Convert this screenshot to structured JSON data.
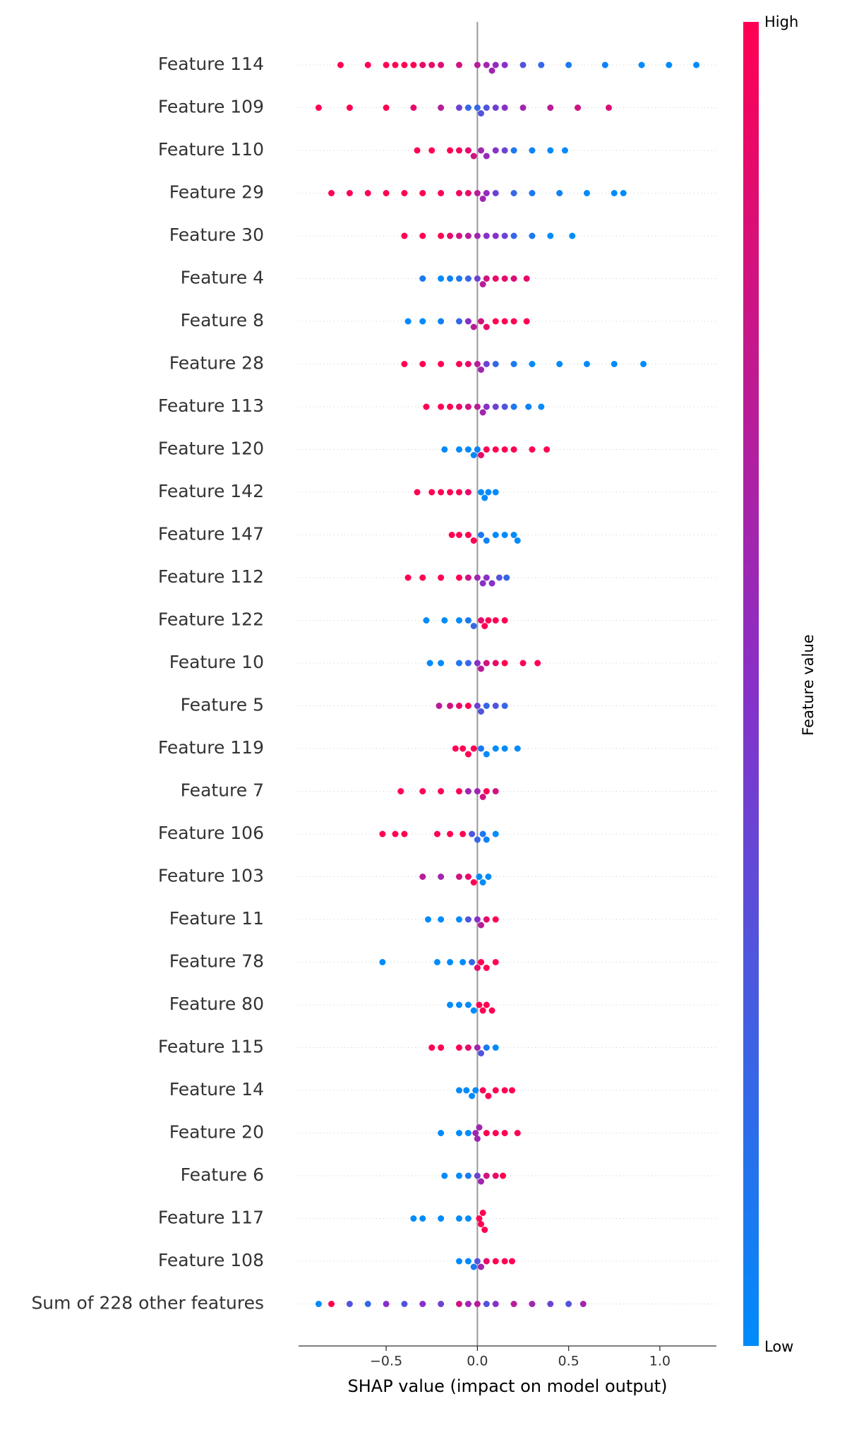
{
  "chart_data": {
    "type": "beeswarm",
    "xlabel": "SHAP value (impact on model output)",
    "xlim": [
      -0.98,
      1.31
    ],
    "xticks": [
      {
        "value": -0.5,
        "label": "−0.5"
      },
      {
        "value": 0,
        "label": "0.0"
      },
      {
        "value": 0.5,
        "label": "0.5"
      },
      {
        "value": 1,
        "label": "1.0"
      }
    ],
    "colorbar": {
      "label": "Feature value",
      "high": "High",
      "low": "Low"
    },
    "colormap": [
      "#008bfb",
      "#8830c8",
      "#ff0052"
    ],
    "rows": [
      {
        "name": "Feature 114",
        "shap": [
          -0.75,
          -0.6,
          -0.5,
          -0.45,
          -0.4,
          -0.35,
          -0.3,
          -0.25,
          -0.2,
          -0.1,
          0.0,
          0.05,
          0.08,
          0.1,
          0.15,
          0.25,
          0.35,
          0.5,
          0.7,
          0.9,
          1.05,
          1.2
        ],
        "feature_value": [
          1,
          1,
          1,
          1,
          1,
          1,
          0.9,
          0.9,
          0.85,
          0.8,
          0.7,
          0.6,
          0.6,
          0.55,
          0.5,
          0.3,
          0.2,
          0.1,
          0.05,
          0,
          0,
          0
        ]
      },
      {
        "name": "Feature 109",
        "shap": [
          -0.87,
          -0.7,
          -0.5,
          -0.35,
          -0.2,
          -0.1,
          -0.05,
          0,
          0.02,
          0.05,
          0.1,
          0.15,
          0.25,
          0.4,
          0.55,
          0.72
        ],
        "feature_value": [
          1,
          1,
          1,
          0.9,
          0.7,
          0.4,
          0.2,
          0.2,
          0.3,
          0.3,
          0.4,
          0.5,
          0.6,
          0.7,
          0.8,
          0.85
        ]
      },
      {
        "name": "Feature 110",
        "shap": [
          -0.33,
          -0.25,
          -0.15,
          -0.1,
          -0.05,
          -0.02,
          0.02,
          0.05,
          0.1,
          0.15,
          0.2,
          0.3,
          0.4,
          0.48
        ],
        "feature_value": [
          1,
          1,
          1,
          0.95,
          0.9,
          0.8,
          0.6,
          0.55,
          0.5,
          0.4,
          0.1,
          0.05,
          0,
          0
        ]
      },
      {
        "name": "Feature 29",
        "shap": [
          -0.8,
          -0.7,
          -0.6,
          -0.5,
          -0.4,
          -0.3,
          -0.2,
          -0.1,
          -0.05,
          0,
          0.03,
          0.05,
          0.1,
          0.2,
          0.3,
          0.45,
          0.6,
          0.75,
          0.8
        ],
        "feature_value": [
          1,
          1,
          1,
          1,
          1,
          1,
          1,
          0.95,
          0.9,
          0.7,
          0.6,
          0.55,
          0.4,
          0.2,
          0.1,
          0.05,
          0,
          0,
          0
        ]
      },
      {
        "name": "Feature 30",
        "shap": [
          -0.4,
          -0.3,
          -0.2,
          -0.15,
          -0.1,
          -0.05,
          0,
          0.05,
          0.1,
          0.15,
          0.2,
          0.3,
          0.4,
          0.52
        ],
        "feature_value": [
          1,
          1,
          1,
          0.9,
          0.8,
          0.7,
          0.6,
          0.5,
          0.5,
          0.4,
          0.2,
          0.1,
          0,
          0
        ]
      },
      {
        "name": "Feature 4",
        "shap": [
          -0.3,
          -0.2,
          -0.15,
          -0.1,
          -0.05,
          0,
          0.03,
          0.05,
          0.1,
          0.15,
          0.2,
          0.27
        ],
        "feature_value": [
          0.1,
          0,
          0.05,
          0.1,
          0.2,
          0.4,
          0.7,
          0.8,
          0.9,
          0.9,
          0.85,
          0.9
        ]
      },
      {
        "name": "Feature 8",
        "shap": [
          -0.38,
          -0.3,
          -0.2,
          -0.1,
          -0.05,
          -0.02,
          0.02,
          0.05,
          0.1,
          0.15,
          0.2,
          0.27
        ],
        "feature_value": [
          0,
          0,
          0.05,
          0.2,
          0.5,
          0.7,
          0.8,
          0.9,
          1,
          1,
          1,
          1
        ]
      },
      {
        "name": "Feature 28",
        "shap": [
          -0.4,
          -0.3,
          -0.2,
          -0.1,
          -0.05,
          0,
          0.02,
          0.05,
          0.1,
          0.2,
          0.3,
          0.45,
          0.6,
          0.75,
          0.91
        ],
        "feature_value": [
          1,
          1,
          1,
          1,
          0.9,
          0.7,
          0.6,
          0.4,
          0.2,
          0.1,
          0,
          0,
          0,
          0,
          0
        ]
      },
      {
        "name": "Feature 113",
        "shap": [
          -0.28,
          -0.2,
          -0.15,
          -0.1,
          -0.05,
          0,
          0.03,
          0.05,
          0.1,
          0.15,
          0.2,
          0.28,
          0.35
        ],
        "feature_value": [
          1,
          1,
          1,
          0.9,
          0.8,
          0.7,
          0.6,
          0.5,
          0.4,
          0.3,
          0.1,
          0.05,
          0
        ]
      },
      {
        "name": "Feature 120",
        "shap": [
          -0.18,
          -0.1,
          -0.05,
          -0.02,
          0,
          0.02,
          0.05,
          0.1,
          0.15,
          0.2,
          0.3,
          0.38
        ],
        "feature_value": [
          0,
          0,
          0,
          0,
          0.05,
          0.9,
          1,
          1,
          1,
          1,
          1,
          1
        ]
      },
      {
        "name": "Feature 142",
        "shap": [
          -0.33,
          -0.25,
          -0.2,
          -0.15,
          -0.1,
          -0.05,
          0.02,
          0.04,
          0.06,
          0.1
        ],
        "feature_value": [
          1,
          1,
          1,
          1,
          1,
          0.9,
          0,
          0,
          0,
          0
        ]
      },
      {
        "name": "Feature 147",
        "shap": [
          -0.14,
          -0.1,
          -0.05,
          -0.02,
          0.02,
          0.05,
          0.1,
          0.15,
          0.2,
          0.22
        ],
        "feature_value": [
          1,
          1,
          1,
          1,
          0.1,
          0.05,
          0,
          0,
          0,
          0
        ]
      },
      {
        "name": "Feature 112",
        "shap": [
          -0.38,
          -0.3,
          -0.2,
          -0.1,
          -0.05,
          0,
          0.03,
          0.05,
          0.08,
          0.12,
          0.16
        ],
        "feature_value": [
          1,
          1,
          1,
          1,
          0.8,
          0.6,
          0.5,
          0.5,
          0.5,
          0.3,
          0.2
        ]
      },
      {
        "name": "Feature 122",
        "shap": [
          -0.28,
          -0.18,
          -0.1,
          -0.05,
          -0.02,
          0.02,
          0.04,
          0.06,
          0.1,
          0.15
        ],
        "feature_value": [
          0,
          0,
          0,
          0.1,
          0.2,
          0.9,
          1,
          1,
          1,
          1
        ]
      },
      {
        "name": "Feature 10",
        "shap": [
          -0.26,
          -0.2,
          -0.1,
          -0.05,
          0,
          0.02,
          0.05,
          0.1,
          0.15,
          0.25,
          0.33
        ],
        "feature_value": [
          0,
          0,
          0.1,
          0.2,
          0.5,
          0.7,
          0.8,
          0.9,
          1,
          1,
          1
        ]
      },
      {
        "name": "Feature 5",
        "shap": [
          -0.21,
          -0.15,
          -0.1,
          -0.05,
          0,
          0.02,
          0.05,
          0.1,
          0.15
        ],
        "feature_value": [
          0.7,
          0.8,
          0.9,
          1,
          0.4,
          0.3,
          0.2,
          0.3,
          0.2
        ]
      },
      {
        "name": "Feature 119",
        "shap": [
          -0.12,
          -0.08,
          -0.05,
          -0.02,
          0.02,
          0.05,
          0.1,
          0.15,
          0.22
        ],
        "feature_value": [
          1,
          1,
          1,
          1,
          0.1,
          0,
          0,
          0,
          0
        ]
      },
      {
        "name": "Feature 7",
        "shap": [
          -0.42,
          -0.3,
          -0.2,
          -0.1,
          -0.05,
          0,
          0.03,
          0.05,
          0.1
        ],
        "feature_value": [
          1,
          1,
          1,
          1,
          0.6,
          0.6,
          0.8,
          1,
          0.8
        ]
      },
      {
        "name": "Feature 106",
        "shap": [
          -0.52,
          -0.45,
          -0.4,
          -0.22,
          -0.15,
          -0.08,
          -0.03,
          0,
          0.03,
          0.05,
          0.1
        ],
        "feature_value": [
          1,
          1,
          1,
          1,
          1,
          1,
          0.3,
          0.2,
          0.1,
          0.05,
          0
        ]
      },
      {
        "name": "Feature 103",
        "shap": [
          -0.3,
          -0.2,
          -0.1,
          -0.05,
          -0.02,
          0.01,
          0.03,
          0.06
        ],
        "feature_value": [
          0.7,
          0.6,
          0.8,
          0.9,
          1,
          0,
          0,
          0
        ]
      },
      {
        "name": "Feature 11",
        "shap": [
          -0.27,
          -0.2,
          -0.1,
          -0.05,
          0,
          0.02,
          0.05,
          0.1
        ],
        "feature_value": [
          0,
          0,
          0,
          0.3,
          0.5,
          0.7,
          0.9,
          1
        ]
      },
      {
        "name": "Feature 78",
        "shap": [
          -0.52,
          -0.22,
          -0.15,
          -0.08,
          -0.03,
          0,
          0.02,
          0.05,
          0.1
        ],
        "feature_value": [
          0,
          0,
          0,
          0,
          0.2,
          0.9,
          1,
          1,
          1
        ]
      },
      {
        "name": "Feature 80",
        "shap": [
          -0.15,
          -0.1,
          -0.05,
          -0.02,
          0.01,
          0.03,
          0.05,
          0.08
        ],
        "feature_value": [
          0,
          0,
          0,
          0,
          1,
          1,
          1,
          1
        ]
      },
      {
        "name": "Feature 115",
        "shap": [
          -0.25,
          -0.2,
          -0.1,
          -0.05,
          0,
          0.02,
          0.05,
          0.1
        ],
        "feature_value": [
          1,
          1,
          1,
          0.9,
          0.6,
          0.3,
          0.1,
          0
        ]
      },
      {
        "name": "Feature 14",
        "shap": [
          -0.1,
          -0.06,
          -0.03,
          -0.01,
          0.03,
          0.06,
          0.1,
          0.15,
          0.19
        ],
        "feature_value": [
          0,
          0,
          0,
          0,
          1,
          1,
          1,
          1,
          1
        ]
      },
      {
        "name": "Feature 20",
        "shap": [
          -0.2,
          -0.1,
          -0.05,
          -0.01,
          0,
          0.01,
          0.05,
          0.1,
          0.15,
          0.22
        ],
        "feature_value": [
          0,
          0,
          0,
          0.6,
          0.6,
          0.6,
          1,
          1,
          1,
          1
        ]
      },
      {
        "name": "Feature 6",
        "shap": [
          -0.18,
          -0.1,
          -0.05,
          0,
          0.02,
          0.05,
          0.1,
          0.14
        ],
        "feature_value": [
          0,
          0,
          0.1,
          0.4,
          0.6,
          0.8,
          0.9,
          1
        ]
      },
      {
        "name": "Feature 117",
        "shap": [
          -0.35,
          -0.3,
          -0.2,
          -0.1,
          -0.05,
          0.01,
          0.02,
          0.03,
          0.04
        ],
        "feature_value": [
          0,
          0,
          0,
          0,
          0,
          1,
          1,
          1,
          1
        ]
      },
      {
        "name": "Feature 108",
        "shap": [
          -0.1,
          -0.05,
          -0.02,
          0,
          0.02,
          0.05,
          0.1,
          0.15,
          0.19
        ],
        "feature_value": [
          0,
          0,
          0.1,
          0.3,
          0.6,
          0.9,
          1,
          1,
          1
        ]
      },
      {
        "name": "Sum of 228 other features",
        "shap": [
          -0.87,
          -0.8,
          -0.7,
          -0.6,
          -0.5,
          -0.4,
          -0.3,
          -0.2,
          -0.1,
          -0.05,
          0,
          0.05,
          0.1,
          0.2,
          0.3,
          0.4,
          0.5,
          0.58
        ],
        "feature_value": [
          0,
          1,
          0.3,
          0.2,
          0.5,
          0.3,
          0.5,
          0.4,
          0.8,
          0.6,
          0.7,
          0.3,
          0.5,
          0.7,
          0.6,
          0.4,
          0.3,
          0.6
        ]
      }
    ]
  }
}
